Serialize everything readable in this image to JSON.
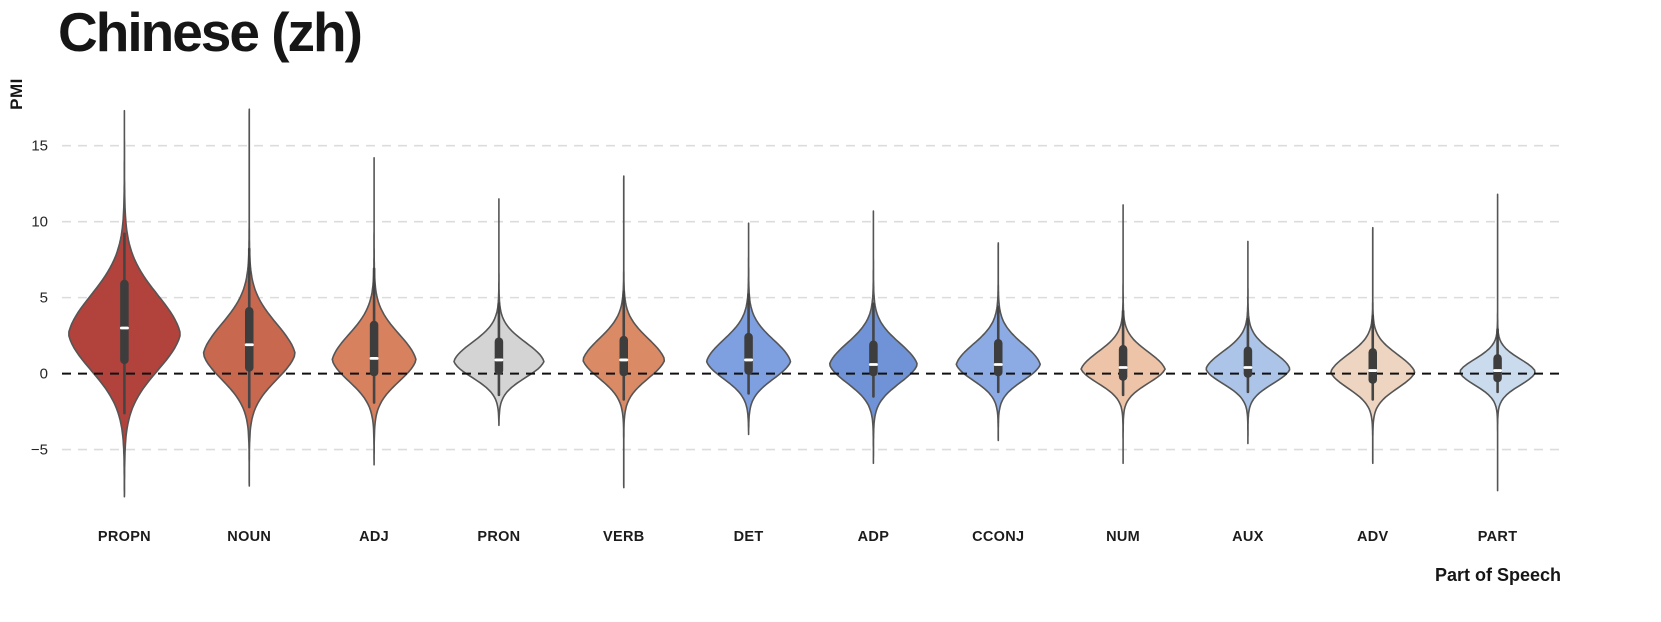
{
  "chart_data": {
    "type": "violin",
    "title": "Chinese (zh)",
    "ylabel": "PMI",
    "xlabel": "Part of Speech",
    "ylim": [
      -9.7,
      18.4
    ],
    "yticks": [
      15,
      10,
      5,
      0,
      -5
    ],
    "zero_line": 0,
    "grid": "dashed-horizontal-gridlines",
    "legend": "none",
    "categories": [
      "PROPN",
      "NOUN",
      "ADJ",
      "PRON",
      "VERB",
      "DET",
      "ADP",
      "CCONJ",
      "NUM",
      "AUX",
      "ADV",
      "PART"
    ],
    "violins": [
      {
        "label": "PROPN",
        "color": "#b2423c",
        "min": -8.1,
        "max": 17.3,
        "mode": 2.6,
        "sigma_top": 2.7,
        "sigma_bot": 2.5,
        "tail": 0.13,
        "hw": 56,
        "box": {
          "lo": -2.6,
          "q1": 0.9,
          "median": 3.0,
          "q3": 5.9,
          "hi": 9.2
        }
      },
      {
        "label": "NOUN",
        "color": "#c8684f",
        "min": -7.4,
        "max": 17.4,
        "mode": 1.3,
        "sigma_top": 2.1,
        "sigma_bot": 1.8,
        "tail": 0.15,
        "hw": 46,
        "box": {
          "lo": -2.2,
          "q1": 0.4,
          "median": 1.9,
          "q3": 4.1,
          "hi": 8.2
        }
      },
      {
        "label": "ADJ",
        "color": "#d8815f",
        "min": -6.0,
        "max": 14.2,
        "mode": 0.9,
        "sigma_top": 1.8,
        "sigma_bot": 1.5,
        "tail": 0.15,
        "hw": 42,
        "box": {
          "lo": -1.9,
          "q1": 0.1,
          "median": 1.0,
          "q3": 3.2,
          "hi": 6.9
        }
      },
      {
        "label": "PRON",
        "color": "#d4d4d4",
        "min": -3.4,
        "max": 11.5,
        "mode": 0.8,
        "sigma_top": 1.3,
        "sigma_bot": 1.1,
        "tail": 0.12,
        "hw": 45,
        "box": {
          "lo": -1.4,
          "q1": 0.2,
          "median": 0.9,
          "q3": 2.1,
          "hi": 4.6
        }
      },
      {
        "label": "VERB",
        "color": "#db8a66",
        "min": -7.5,
        "max": 13.0,
        "mode": 0.9,
        "sigma_top": 1.5,
        "sigma_bot": 1.3,
        "tail": 0.16,
        "hw": 41,
        "box": {
          "lo": -1.7,
          "q1": 0.1,
          "median": 0.9,
          "q3": 2.2,
          "hi": 5.4
        }
      },
      {
        "label": "DET",
        "color": "#7e9fe0",
        "min": -4.0,
        "max": 9.9,
        "mode": 0.8,
        "sigma_top": 1.5,
        "sigma_bot": 1.2,
        "tail": 0.14,
        "hw": 42,
        "box": {
          "lo": -1.3,
          "q1": 0.2,
          "median": 0.9,
          "q3": 2.4,
          "hi": 5.2
        }
      },
      {
        "label": "ADP",
        "color": "#6f93d6",
        "min": -5.9,
        "max": 10.7,
        "mode": 0.6,
        "sigma_top": 1.5,
        "sigma_bot": 1.3,
        "tail": 0.15,
        "hw": 44,
        "box": {
          "lo": -1.5,
          "q1": 0.1,
          "median": 0.6,
          "q3": 1.9,
          "hi": 4.6
        }
      },
      {
        "label": "CCONJ",
        "color": "#8cabe4",
        "min": -4.4,
        "max": 8.6,
        "mode": 0.6,
        "sigma_top": 1.4,
        "sigma_bot": 1.1,
        "tail": 0.13,
        "hw": 42,
        "box": {
          "lo": -1.2,
          "q1": 0.1,
          "median": 0.6,
          "q3": 2.0,
          "hi": 4.4
        }
      },
      {
        "label": "NUM",
        "color": "#eec4a9",
        "min": -5.9,
        "max": 11.1,
        "mode": 0.3,
        "sigma_top": 1.2,
        "sigma_bot": 1.0,
        "tail": 0.15,
        "hw": 42,
        "box": {
          "lo": -1.4,
          "q1": -0.2,
          "median": 0.4,
          "q3": 1.6,
          "hi": 4.1
        }
      },
      {
        "label": "AUX",
        "color": "#abc4e8",
        "min": -4.6,
        "max": 8.7,
        "mode": 0.3,
        "sigma_top": 1.2,
        "sigma_bot": 1.0,
        "tail": 0.12,
        "hw": 42,
        "box": {
          "lo": -1.2,
          "q1": 0.0,
          "median": 0.4,
          "q3": 1.5,
          "hi": 3.6
        }
      },
      {
        "label": "ADV",
        "color": "#eed5c1",
        "min": -5.9,
        "max": 9.6,
        "mode": 0.1,
        "sigma_top": 1.2,
        "sigma_bot": 1.1,
        "tail": 0.13,
        "hw": 42,
        "box": {
          "lo": -1.7,
          "q1": -0.4,
          "median": 0.2,
          "q3": 1.4,
          "hi": 3.8
        }
      },
      {
        "label": "PART",
        "color": "#cadbee",
        "min": -7.7,
        "max": 11.8,
        "mode": 0.1,
        "sigma_top": 0.9,
        "sigma_bot": 0.9,
        "tail": 0.12,
        "hw": 38,
        "box": {
          "lo": -1.2,
          "q1": -0.3,
          "median": 0.2,
          "q3": 1.0,
          "hi": 2.9
        }
      }
    ],
    "style": {
      "edge_color": "#555555",
      "box_color": "#3d3d3d",
      "whisker_color": "#454545",
      "median_color": "#ffffff",
      "gridline_color": "#dcdcdc",
      "zero_line_color": "#111111",
      "tick_label_color": "#262626",
      "category_label_color": "#1c1c1c"
    }
  }
}
